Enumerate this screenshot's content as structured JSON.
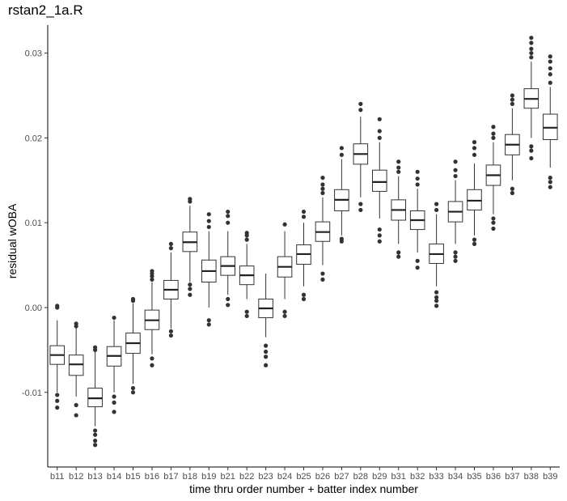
{
  "chart_data": {
    "type": "box",
    "title": "rstan2_1a.R",
    "xlabel": "time thru order number + batter index number",
    "ylabel": "residual wOBA",
    "yticks": [
      -0.01,
      0.0,
      0.01,
      0.02,
      0.03
    ],
    "ytick_labels": [
      "-0.01",
      "0.00",
      "0.01",
      "0.02",
      "0.03"
    ],
    "ylim": [
      -0.0188,
      0.0333
    ],
    "grid": false,
    "categories": [
      "b11",
      "b12",
      "b13",
      "b14",
      "b15",
      "b16",
      "b17",
      "b18",
      "b19",
      "b21",
      "b22",
      "b23",
      "b24",
      "b25",
      "b26",
      "b27",
      "b28",
      "b29",
      "b31",
      "b32",
      "b33",
      "b34",
      "b35",
      "b36",
      "b37",
      "b38",
      "b39"
    ],
    "boxes": [
      {
        "low": -0.01,
        "q1": -0.0067,
        "median": -0.0056,
        "q3": -0.0045,
        "high": -0.0015,
        "outliers": [
          -0.0118,
          -0.011,
          -0.0103,
          0.0,
          0.0002
        ]
      },
      {
        "low": -0.0105,
        "q1": -0.008,
        "median": -0.0067,
        "q3": -0.0056,
        "high": -0.0024,
        "outliers": [
          -0.0127,
          -0.0115,
          -0.0022,
          -0.0019
        ]
      },
      {
        "low": -0.014,
        "q1": -0.0117,
        "median": -0.0107,
        "q3": -0.0095,
        "high": -0.005,
        "outliers": [
          -0.0162,
          -0.0157,
          -0.015,
          -0.0145,
          -0.005,
          -0.0047
        ]
      },
      {
        "low": -0.01,
        "q1": -0.0069,
        "median": -0.0057,
        "q3": -0.0046,
        "high": -0.0015,
        "outliers": [
          -0.0123,
          -0.0112,
          -0.0105,
          -0.0012
        ]
      },
      {
        "low": -0.009,
        "q1": -0.0054,
        "median": -0.0042,
        "q3": -0.003,
        "high": 0.0005,
        "outliers": [
          -0.01,
          -0.0095,
          0.0008,
          0.001
        ]
      },
      {
        "low": -0.0055,
        "q1": -0.0026,
        "median": -0.0015,
        "q3": -0.0003,
        "high": 0.003,
        "outliers": [
          -0.0068,
          -0.006,
          0.0033,
          0.0037,
          0.004,
          0.0043
        ]
      },
      {
        "low": -0.0025,
        "q1": 0.001,
        "median": 0.0021,
        "q3": 0.0032,
        "high": 0.0065,
        "outliers": [
          -0.0033,
          -0.0028,
          0.007,
          0.0075
        ]
      },
      {
        "low": 0.003,
        "q1": 0.0066,
        "median": 0.0077,
        "q3": 0.0089,
        "high": 0.012,
        "outliers": [
          0.0015,
          0.0022,
          0.0027,
          0.0125,
          0.0128
        ]
      },
      {
        "low": 0.0,
        "q1": 0.003,
        "median": 0.0043,
        "q3": 0.0056,
        "high": 0.009,
        "outliers": [
          -0.002,
          -0.0015,
          0.0095,
          0.0102,
          0.011
        ]
      },
      {
        "low": 0.0015,
        "q1": 0.0038,
        "median": 0.0049,
        "q3": 0.006,
        "high": 0.009,
        "outliers": [
          0.0003,
          0.001,
          0.01,
          0.0108,
          0.0113
        ]
      },
      {
        "low": 0.001,
        "q1": 0.0027,
        "median": 0.0038,
        "q3": 0.0049,
        "high": 0.0075,
        "outliers": [
          -0.001,
          -0.0005,
          0.008,
          0.0085,
          0.0088
        ]
      },
      {
        "low": -0.0035,
        "q1": -0.0012,
        "median": -0.0001,
        "q3": 0.001,
        "high": 0.004,
        "outliers": [
          -0.0068,
          -0.0058,
          -0.0052,
          -0.0045
        ]
      },
      {
        "low": 0.001,
        "q1": 0.0036,
        "median": 0.0048,
        "q3": 0.006,
        "high": 0.009,
        "outliers": [
          -0.001,
          -0.0005,
          0.0098
        ]
      },
      {
        "low": 0.0025,
        "q1": 0.0051,
        "median": 0.0063,
        "q3": 0.0074,
        "high": 0.01,
        "outliers": [
          0.001,
          0.0015,
          0.0107,
          0.0113
        ]
      },
      {
        "low": 0.005,
        "q1": 0.0078,
        "median": 0.0089,
        "q3": 0.0101,
        "high": 0.013,
        "outliers": [
          0.0033,
          0.004,
          0.0135,
          0.014,
          0.0145,
          0.0153
        ]
      },
      {
        "low": 0.0085,
        "q1": 0.0114,
        "median": 0.0127,
        "q3": 0.0139,
        "high": 0.0175,
        "outliers": [
          0.0078,
          0.0081,
          0.018,
          0.0188
        ]
      },
      {
        "low": 0.013,
        "q1": 0.0169,
        "median": 0.0181,
        "q3": 0.0193,
        "high": 0.0225,
        "outliers": [
          0.0115,
          0.0122,
          0.0233,
          0.024
        ]
      },
      {
        "low": 0.0105,
        "q1": 0.0137,
        "median": 0.0148,
        "q3": 0.0162,
        "high": 0.0195,
        "outliers": [
          0.0078,
          0.0085,
          0.0092,
          0.02,
          0.0208,
          0.0222
        ]
      },
      {
        "low": 0.0075,
        "q1": 0.0103,
        "median": 0.0115,
        "q3": 0.0127,
        "high": 0.0155,
        "outliers": [
          0.006,
          0.0065,
          0.016,
          0.0165,
          0.0172
        ]
      },
      {
        "low": 0.0065,
        "q1": 0.0092,
        "median": 0.0103,
        "q3": 0.0114,
        "high": 0.014,
        "outliers": [
          0.0047,
          0.0055,
          0.0145,
          0.0152,
          0.016
        ]
      },
      {
        "low": 0.0025,
        "q1": 0.0052,
        "median": 0.0063,
        "q3": 0.0075,
        "high": 0.011,
        "outliers": [
          0.0002,
          0.0008,
          0.0012,
          0.0018,
          0.0115,
          0.0122
        ]
      },
      {
        "low": 0.0075,
        "q1": 0.0101,
        "median": 0.0113,
        "q3": 0.0125,
        "high": 0.015,
        "outliers": [
          0.0055,
          0.006,
          0.0065,
          0.0155,
          0.0162,
          0.0172
        ]
      },
      {
        "low": 0.0085,
        "q1": 0.0115,
        "median": 0.0126,
        "q3": 0.0139,
        "high": 0.017,
        "outliers": [
          0.0075,
          0.008,
          0.018,
          0.0188,
          0.0195
        ]
      },
      {
        "low": 0.011,
        "q1": 0.0144,
        "median": 0.0156,
        "q3": 0.0168,
        "high": 0.0195,
        "outliers": [
          0.0093,
          0.01,
          0.0105,
          0.02,
          0.0205,
          0.0213
        ]
      },
      {
        "low": 0.015,
        "q1": 0.018,
        "median": 0.0192,
        "q3": 0.0204,
        "high": 0.0235,
        "outliers": [
          0.0135,
          0.014,
          0.024,
          0.0245,
          0.025
        ]
      },
      {
        "low": 0.02,
        "q1": 0.0235,
        "median": 0.0246,
        "q3": 0.0258,
        "high": 0.029,
        "outliers": [
          0.0176,
          0.0185,
          0.019,
          0.0295,
          0.03,
          0.0305,
          0.0312,
          0.0318
        ]
      },
      {
        "low": 0.0165,
        "q1": 0.0198,
        "median": 0.0212,
        "q3": 0.0228,
        "high": 0.026,
        "outliers": [
          0.0142,
          0.0148,
          0.0153,
          0.0265,
          0.0275,
          0.0282,
          0.029,
          0.0296
        ]
      }
    ]
  }
}
